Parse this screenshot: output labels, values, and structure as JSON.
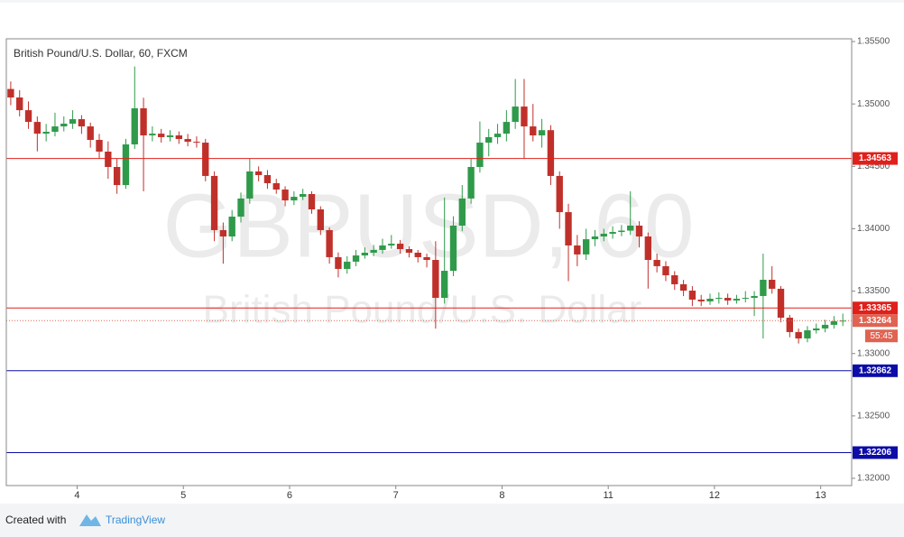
{
  "chart_data": {
    "type": "candlestick",
    "title": "British Pound/U.S. Dollar, 60, FXCM",
    "watermark": {
      "symbol": "GBPUSD, 60",
      "description": "British Pound/U.S. Dollar"
    },
    "up_color": "#2f9a4a",
    "down_color": "#c0302a",
    "xlim": [
      0,
      191
    ],
    "xticks": [
      {
        "value": 16,
        "label": "4"
      },
      {
        "value": 40,
        "label": "5"
      },
      {
        "value": 64,
        "label": "6"
      },
      {
        "value": 88,
        "label": "7"
      },
      {
        "value": 112,
        "label": "8"
      },
      {
        "value": 136,
        "label": "11"
      },
      {
        "value": 160,
        "label": "12"
      },
      {
        "value": 184,
        "label": "13"
      }
    ],
    "ylim": [
      1.31942,
      1.35522
    ],
    "yticks": [
      {
        "value": 1.32,
        "label": "1.32000"
      },
      {
        "value": 1.325,
        "label": "1.32500"
      },
      {
        "value": 1.33,
        "label": "1.33000"
      },
      {
        "value": 1.335,
        "label": "1.33500"
      },
      {
        "value": 1.34,
        "label": "1.34000"
      },
      {
        "value": 1.345,
        "label": "1.34500"
      },
      {
        "value": 1.35,
        "label": "1.35000"
      },
      {
        "value": 1.355,
        "label": "1.35500"
      }
    ],
    "grid": false,
    "levels": [
      {
        "value": 1.34563,
        "color": "#e0201b"
      },
      {
        "value": 1.33365,
        "color": "#e0201b"
      },
      {
        "value": 1.32862,
        "color": "#0c0ca8"
      },
      {
        "value": 1.32206,
        "color": "#0c0ca8"
      }
    ],
    "current_price": {
      "value": 1.33264,
      "countdown": "55:45",
      "color": "#e06352"
    },
    "x": [
      1,
      3,
      5,
      7,
      9,
      11,
      13,
      15,
      17,
      19,
      21,
      23,
      25,
      27,
      29,
      31,
      33,
      35,
      37,
      39,
      41,
      43,
      45,
      47,
      49,
      51,
      53,
      55,
      57,
      59,
      61,
      63,
      65,
      67,
      69,
      71,
      73,
      75,
      77,
      79,
      81,
      83,
      85,
      87,
      89,
      91,
      93,
      95,
      97,
      99,
      101,
      103,
      105,
      107,
      109,
      111,
      113,
      115,
      117,
      119,
      121,
      123,
      125,
      127,
      129,
      131,
      133,
      135,
      137,
      139,
      141,
      143,
      145,
      147,
      149,
      151,
      153,
      155,
      157,
      159,
      161,
      163,
      165,
      167,
      169,
      171,
      173,
      175,
      177,
      179,
      181,
      183,
      185,
      187,
      189
    ],
    "candles": [
      [
        1.3512,
        1.3518,
        1.3499,
        1.35052
      ],
      [
        1.35052,
        1.3511,
        1.349,
        1.3495
      ],
      [
        1.3495,
        1.3502,
        1.348,
        1.34856
      ],
      [
        1.34856,
        1.349,
        1.3462,
        1.34762
      ],
      [
        1.34762,
        1.3484,
        1.347,
        1.34777
      ],
      [
        1.34777,
        1.3493,
        1.3474,
        1.3482
      ],
      [
        1.3482,
        1.349,
        1.3478,
        1.34842
      ],
      [
        1.34842,
        1.3495,
        1.348,
        1.34878
      ],
      [
        1.34878,
        1.3491,
        1.3476,
        1.3482
      ],
      [
        1.3482,
        1.3485,
        1.3465,
        1.34712
      ],
      [
        1.34712,
        1.3476,
        1.3456,
        1.34618
      ],
      [
        1.34618,
        1.347,
        1.344,
        1.34495
      ],
      [
        1.34495,
        1.3456,
        1.3428,
        1.3435
      ],
      [
        1.3435,
        1.3472,
        1.3432,
        1.34676
      ],
      [
        1.34676,
        1.353,
        1.3464,
        1.34965
      ],
      [
        1.34965,
        1.3505,
        1.343,
        1.34748
      ],
      [
        1.34748,
        1.3482,
        1.347,
        1.34762
      ],
      [
        1.34762,
        1.348,
        1.3469,
        1.34734
      ],
      [
        1.34734,
        1.3479,
        1.347,
        1.34748
      ],
      [
        1.34748,
        1.3478,
        1.3468,
        1.34719
      ],
      [
        1.34719,
        1.3476,
        1.3466,
        1.34697
      ],
      [
        1.34697,
        1.3474,
        1.3465,
        1.3469
      ],
      [
        1.3469,
        1.3472,
        1.3438,
        1.34423
      ],
      [
        1.34423,
        1.3446,
        1.339,
        1.33989
      ],
      [
        1.33989,
        1.3405,
        1.3372,
        1.33938
      ],
      [
        1.33938,
        1.3415,
        1.339,
        1.34097
      ],
      [
        1.34097,
        1.3429,
        1.3405,
        1.34242
      ],
      [
        1.34242,
        1.3456,
        1.342,
        1.34459
      ],
      [
        1.34459,
        1.345,
        1.3438,
        1.3443
      ],
      [
        1.3443,
        1.3447,
        1.3432,
        1.34365
      ],
      [
        1.34365,
        1.344,
        1.3428,
        1.34314
      ],
      [
        1.34314,
        1.3434,
        1.3418,
        1.34227
      ],
      [
        1.34227,
        1.343,
        1.3419,
        1.34256
      ],
      [
        1.34256,
        1.3432,
        1.3423,
        1.34278
      ],
      [
        1.34278,
        1.343,
        1.3412,
        1.34155
      ],
      [
        1.34155,
        1.3418,
        1.3395,
        1.33989
      ],
      [
        1.33989,
        1.3401,
        1.3372,
        1.33772
      ],
      [
        1.33772,
        1.3381,
        1.3361,
        1.33678
      ],
      [
        1.33678,
        1.3378,
        1.3364,
        1.33736
      ],
      [
        1.33736,
        1.3383,
        1.337,
        1.33786
      ],
      [
        1.33786,
        1.3385,
        1.3376,
        1.33808
      ],
      [
        1.33808,
        1.3387,
        1.3378,
        1.3383
      ],
      [
        1.3383,
        1.3392,
        1.338,
        1.33866
      ],
      [
        1.33866,
        1.3395,
        1.3384,
        1.3388
      ],
      [
        1.3388,
        1.3391,
        1.338,
        1.33837
      ],
      [
        1.33837,
        1.3386,
        1.3377,
        1.33808
      ],
      [
        1.33808,
        1.3383,
        1.3373,
        1.33772
      ],
      [
        1.33772,
        1.338,
        1.3369,
        1.3375
      ],
      [
        1.3375,
        1.339,
        1.332,
        1.33446
      ],
      [
        1.33446,
        1.3425,
        1.334,
        1.33663
      ],
      [
        1.33663,
        1.341,
        1.3362,
        1.34025
      ],
      [
        1.34025,
        1.3435,
        1.3398,
        1.34242
      ],
      [
        1.34242,
        1.3456,
        1.342,
        1.34495
      ],
      [
        1.34495,
        1.3486,
        1.3445,
        1.3469
      ],
      [
        1.3469,
        1.348,
        1.3458,
        1.34734
      ],
      [
        1.34734,
        1.3484,
        1.3468,
        1.34762
      ],
      [
        1.34762,
        1.3495,
        1.347,
        1.34856
      ],
      [
        1.34856,
        1.352,
        1.348,
        1.34979
      ],
      [
        1.34979,
        1.352,
        1.3456,
        1.3482
      ],
      [
        1.3482,
        1.35,
        1.347,
        1.34748
      ],
      [
        1.34748,
        1.3488,
        1.3465,
        1.3479
      ],
      [
        1.3479,
        1.3483,
        1.3435,
        1.34423
      ],
      [
        1.34423,
        1.3446,
        1.34,
        1.34133
      ],
      [
        1.34133,
        1.342,
        1.3358,
        1.33866
      ],
      [
        1.33866,
        1.3395,
        1.337,
        1.33794
      ],
      [
        1.33794,
        1.34,
        1.3375,
        1.33916
      ],
      [
        1.33916,
        1.3399,
        1.3386,
        1.33938
      ],
      [
        1.33938,
        1.34,
        1.339,
        1.3396
      ],
      [
        1.3396,
        1.3402,
        1.3392,
        1.33974
      ],
      [
        1.33974,
        1.3403,
        1.3394,
        1.33985
      ],
      [
        1.33985,
        1.343,
        1.3395,
        1.34025
      ],
      [
        1.34025,
        1.3406,
        1.3385,
        1.33938
      ],
      [
        1.33938,
        1.3397,
        1.3352,
        1.3375
      ],
      [
        1.3375,
        1.338,
        1.3365,
        1.337
      ],
      [
        1.337,
        1.3374,
        1.3358,
        1.33627
      ],
      [
        1.33627,
        1.3366,
        1.3351,
        1.33555
      ],
      [
        1.33555,
        1.3359,
        1.3346,
        1.33504
      ],
      [
        1.33504,
        1.3354,
        1.3338,
        1.33432
      ],
      [
        1.33432,
        1.3347,
        1.3338,
        1.33418
      ],
      [
        1.33418,
        1.3348,
        1.3339,
        1.33439
      ],
      [
        1.33439,
        1.3349,
        1.334,
        1.33446
      ],
      [
        1.33446,
        1.3348,
        1.3339,
        1.33425
      ],
      [
        1.33425,
        1.3347,
        1.334,
        1.33439
      ],
      [
        1.33439,
        1.335,
        1.3341,
        1.33446
      ],
      [
        1.33446,
        1.335,
        1.333,
        1.33461
      ],
      [
        1.33461,
        1.338,
        1.3312,
        1.33591
      ],
      [
        1.33591,
        1.337,
        1.3348,
        1.33519
      ],
      [
        1.33519,
        1.3354,
        1.3325,
        1.33287
      ],
      [
        1.33287,
        1.3331,
        1.3313,
        1.33172
      ],
      [
        1.33172,
        1.332,
        1.3308,
        1.33121
      ],
      [
        1.33121,
        1.3322,
        1.3309,
        1.33186
      ],
      [
        1.33186,
        1.3324,
        1.3316,
        1.33201
      ],
      [
        1.33201,
        1.3327,
        1.3317,
        1.3323
      ],
      [
        1.3323,
        1.333,
        1.332,
        1.33258
      ],
      [
        1.33258,
        1.3332,
        1.3322,
        1.33264
      ]
    ],
    "footer": {
      "prefix": "Created with",
      "brand": "TradingView"
    }
  }
}
